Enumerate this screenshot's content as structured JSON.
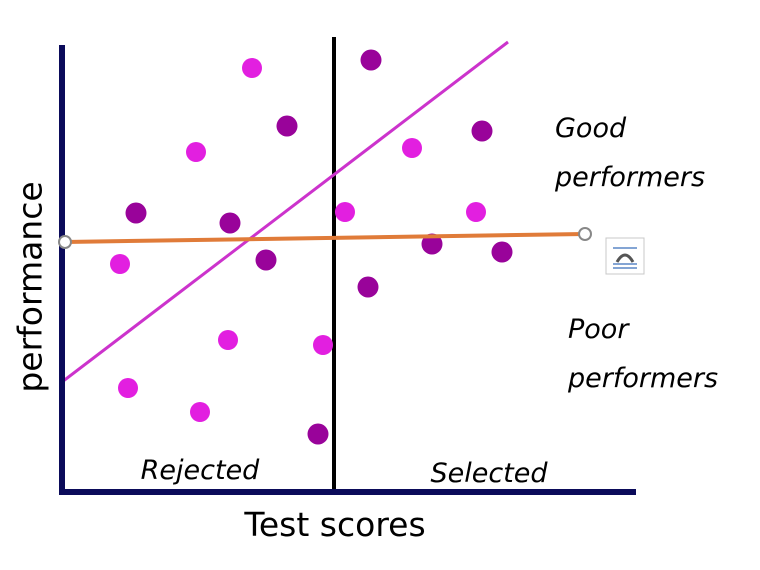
{
  "axis_labels": {
    "y": "performance",
    "x": "Test scores"
  },
  "regions": {
    "left": "Rejected",
    "right": "Selected"
  },
  "quadrant_labels": {
    "good": [
      "Good",
      "performers"
    ],
    "poor": [
      "Poor",
      "performers"
    ]
  }
}
